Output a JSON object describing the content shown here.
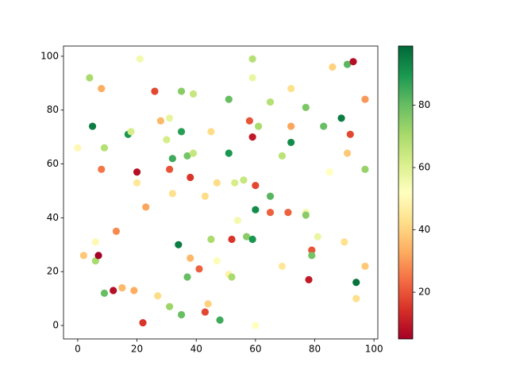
{
  "chart_data": {
    "type": "scatter",
    "x": [
      0,
      4,
      5,
      6,
      6,
      7,
      8,
      8,
      9,
      2,
      9,
      12,
      13,
      15,
      17,
      18,
      19,
      20,
      20,
      21,
      22,
      23,
      26,
      27,
      28,
      30,
      31,
      31,
      31,
      32,
      32,
      34,
      35,
      35,
      35,
      37,
      37,
      38,
      38,
      39,
      39,
      41,
      43,
      43,
      44,
      45,
      45,
      47,
      47,
      48,
      51,
      51,
      51,
      52,
      52,
      53,
      54,
      56,
      57,
      58,
      59,
      59,
      59,
      59,
      60,
      60,
      60,
      61,
      65,
      65,
      65,
      69,
      69,
      71,
      72,
      72,
      72,
      77,
      77,
      77,
      78,
      79,
      79,
      81,
      83,
      85,
      86,
      89,
      90,
      91,
      91,
      92,
      93,
      94,
      94,
      97,
      97,
      97
    ],
    "y": [
      66,
      92,
      74,
      31,
      24,
      26,
      88,
      58,
      66,
      26,
      12,
      13,
      35,
      14,
      71,
      72,
      13,
      57,
      53,
      99,
      1,
      44,
      87,
      11,
      76,
      69,
      77,
      58,
      7,
      62,
      49,
      30,
      87,
      72,
      4,
      63,
      18,
      55,
      25,
      86,
      64,
      21,
      48,
      5,
      8,
      72,
      32,
      53,
      24,
      2,
      84,
      64,
      19,
      32,
      18,
      53,
      39,
      54,
      33,
      76,
      99,
      92,
      70,
      32,
      52,
      43,
      0,
      74,
      83,
      48,
      42,
      63,
      22,
      42,
      88,
      74,
      68,
      81,
      42,
      41,
      17,
      28,
      26,
      33,
      74,
      57,
      96,
      77,
      31,
      97,
      64,
      71,
      98,
      16,
      10,
      84,
      58,
      22
    ],
    "c": [
      50,
      70,
      95,
      50,
      70,
      5,
      33,
      25,
      68,
      38,
      80,
      8,
      28,
      35,
      90,
      62,
      33,
      8,
      45,
      55,
      15,
      32,
      18,
      42,
      35,
      62,
      58,
      20,
      72,
      85,
      43,
      95,
      75,
      88,
      80,
      78,
      80,
      15,
      35,
      65,
      65,
      22,
      42,
      18,
      40,
      42,
      70,
      42,
      53,
      85,
      80,
      90,
      48,
      15,
      70,
      62,
      55,
      65,
      75,
      20,
      68,
      57,
      10,
      90,
      18,
      92,
      52,
      70,
      68,
      82,
      22,
      67,
      45,
      22,
      43,
      32,
      92,
      77,
      55,
      75,
      10,
      20,
      78,
      57,
      80,
      52,
      40,
      95,
      43,
      82,
      38,
      18,
      8,
      97,
      43,
      30,
      73,
      38
    ],
    "colormap": "RdYlGn",
    "clim": [
      5,
      99
    ],
    "cticks": [
      20,
      40,
      60,
      80
    ],
    "xlim": [
      -4.8,
      101.3
    ],
    "ylim": [
      -5,
      103.8
    ],
    "xticks": [
      0,
      20,
      40,
      60,
      80,
      100
    ],
    "yticks": [
      0,
      20,
      40,
      60,
      80,
      100
    ],
    "grid": false
  }
}
